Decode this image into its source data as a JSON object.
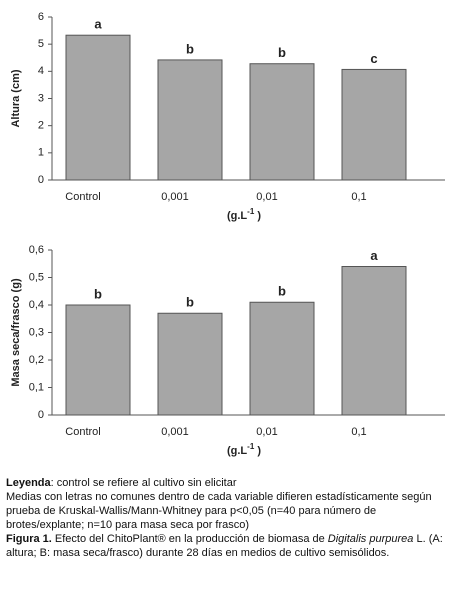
{
  "chart_data": [
    {
      "type": "bar",
      "ylabel": "Altura (cm)",
      "xlabel": {
        "text": "(g.L",
        "sup": "-1",
        "end": " )"
      },
      "categories": [
        "Control",
        "0,001",
        "0,01",
        "0,1"
      ],
      "values": [
        5.33,
        4.42,
        4.28,
        4.07
      ],
      "annotations": [
        "a",
        "b",
        "b",
        "c"
      ],
      "color": "#a6a6a6",
      "ylim": [
        0,
        6
      ],
      "yticks": [
        0,
        1,
        2,
        3,
        4,
        5,
        6
      ]
    },
    {
      "type": "bar",
      "ylabel": "Masa seca/frasco (g)",
      "xlabel": {
        "text": "(g.L",
        "sup": "-1",
        "end": " )"
      },
      "categories": [
        "Control",
        "0,001",
        "0,01",
        "0,1"
      ],
      "values": [
        0.4,
        0.37,
        0.41,
        0.54
      ],
      "annotations": [
        "b",
        "b",
        "b",
        "a"
      ],
      "color": "#a6a6a6",
      "ylim": [
        0,
        0.6
      ],
      "yticks": [
        0,
        {
          "value": 0.1,
          "label": "0,1"
        },
        {
          "value": 0.2,
          "label": "0,2"
        },
        {
          "value": 0.3,
          "label": "0,3"
        },
        {
          "value": 0.4,
          "label": "0,4"
        },
        {
          "value": 0.5,
          "label": "0,5"
        },
        {
          "value": 0.6,
          "label": "0,6"
        }
      ]
    }
  ],
  "caption": {
    "legend_head": "Leyenda",
    "legend_text": ": control se refiere al cultivo sin elicitar",
    "note": "Medias con letras no comunes dentro de cada variable difieren estadísticamente según prueba de Kruskal-Wallis/Mann-Whitney para p<0,05 (n=40 para número de brotes/explante; n=10 para masa seca por frasco)",
    "figure_head": "Figura 1.",
    "figure_text": " Efecto del ChitoPlant® en la producción de biomasa de ",
    "species": "Digitalis purpurea",
    "figure_end": " L. (A: altura; B: masa seca/frasco) durante 28 días en medios de cultivo semisólidos."
  }
}
